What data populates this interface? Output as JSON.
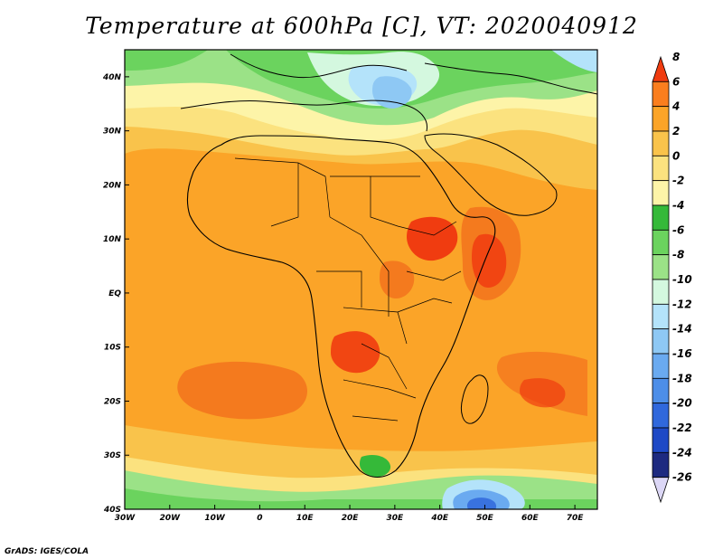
{
  "title": "Temperature at 600hPa [C], VT: 2020040912",
  "credit": "GrADS: IGES/COLA",
  "map": {
    "lon_range": [
      -30,
      75
    ],
    "lat_range": [
      -40,
      45
    ],
    "lon_ticks": [
      "30W",
      "20W",
      "10W",
      "0",
      "10E",
      "20E",
      "30E",
      "40E",
      "50E",
      "60E",
      "70E"
    ],
    "lat_ticks": [
      "40N",
      "30N",
      "20N",
      "10N",
      "EQ",
      "10S",
      "20S",
      "30S",
      "40S"
    ],
    "region": "Africa and surrounding oceans"
  },
  "colorbar": {
    "labels": [
      "8",
      "6",
      "4",
      "2",
      "0",
      "-2",
      "-4",
      "-6",
      "-8",
      "-10",
      "-12",
      "-14",
      "-16",
      "-18",
      "-20",
      "-22",
      "-24",
      "-26"
    ],
    "colors": [
      "#f03c10",
      "#fa7e1e",
      "#fba428",
      "#f9c34b",
      "#fbe27f",
      "#fdf4a8",
      "#35b939",
      "#6bd35e",
      "#9be287",
      "#d4f8df",
      "#b4e3fa",
      "#8ec8f4",
      "#6aaaf0",
      "#4d8ee8",
      "#3068dc",
      "#1e49c6",
      "#1d2a80",
      "#dcd7f6"
    ]
  }
}
